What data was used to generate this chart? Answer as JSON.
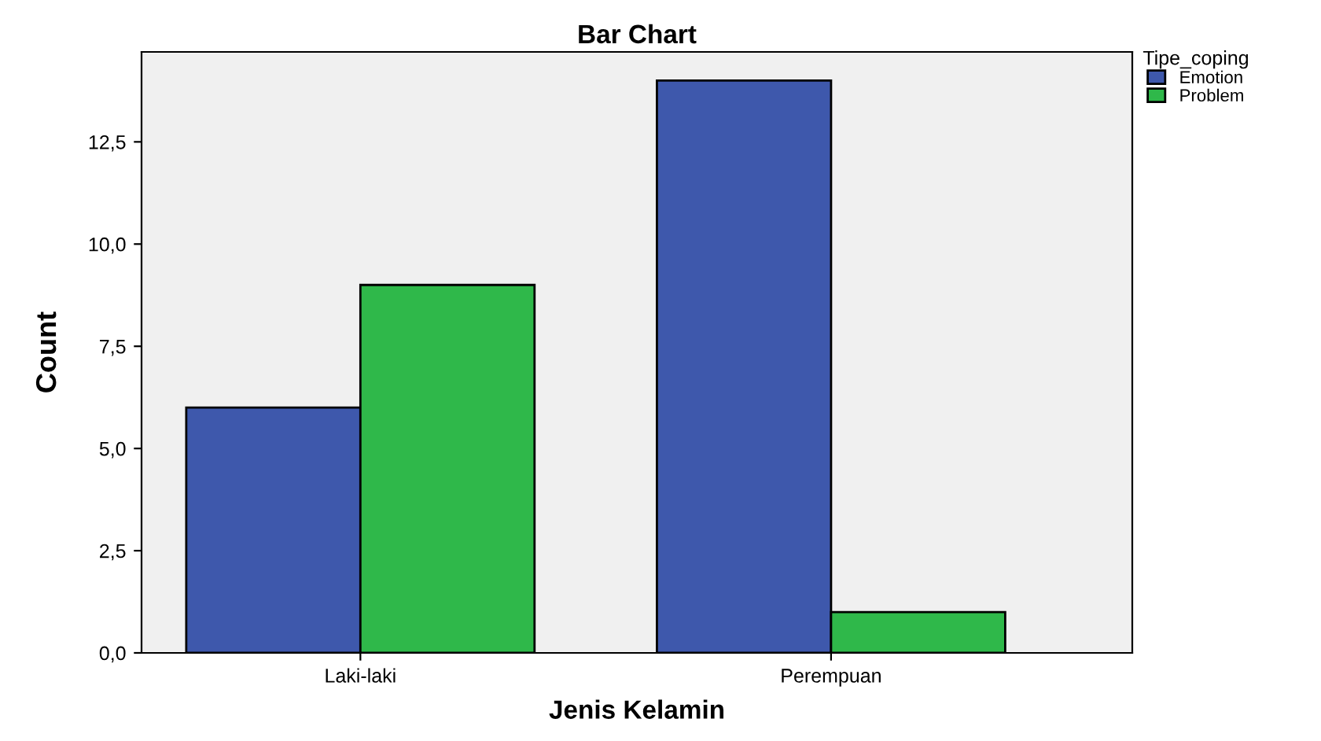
{
  "chart_data": {
    "type": "bar",
    "title": "Bar Chart",
    "xlabel": "Jenis Kelamin",
    "ylabel": "Count",
    "legend_title": "Tipe_coping",
    "categories": [
      "Laki-laki",
      "Perempuan"
    ],
    "series": [
      {
        "name": "Emotion",
        "color": "#3e58ac",
        "values": [
          6,
          14
        ]
      },
      {
        "name": "Problem",
        "color": "#2fb84a",
        "values": [
          9,
          1
        ]
      }
    ],
    "ylim": [
      0,
      14.7
    ],
    "yticks": [
      {
        "value": 0,
        "label": "0,0"
      },
      {
        "value": 2.5,
        "label": "2,5"
      },
      {
        "value": 5,
        "label": "5,0"
      },
      {
        "value": 7.5,
        "label": "7,5"
      },
      {
        "value": 10,
        "label": "10,0"
      },
      {
        "value": 12.5,
        "label": "12,5"
      }
    ],
    "grid": false,
    "legend": "top right"
  }
}
